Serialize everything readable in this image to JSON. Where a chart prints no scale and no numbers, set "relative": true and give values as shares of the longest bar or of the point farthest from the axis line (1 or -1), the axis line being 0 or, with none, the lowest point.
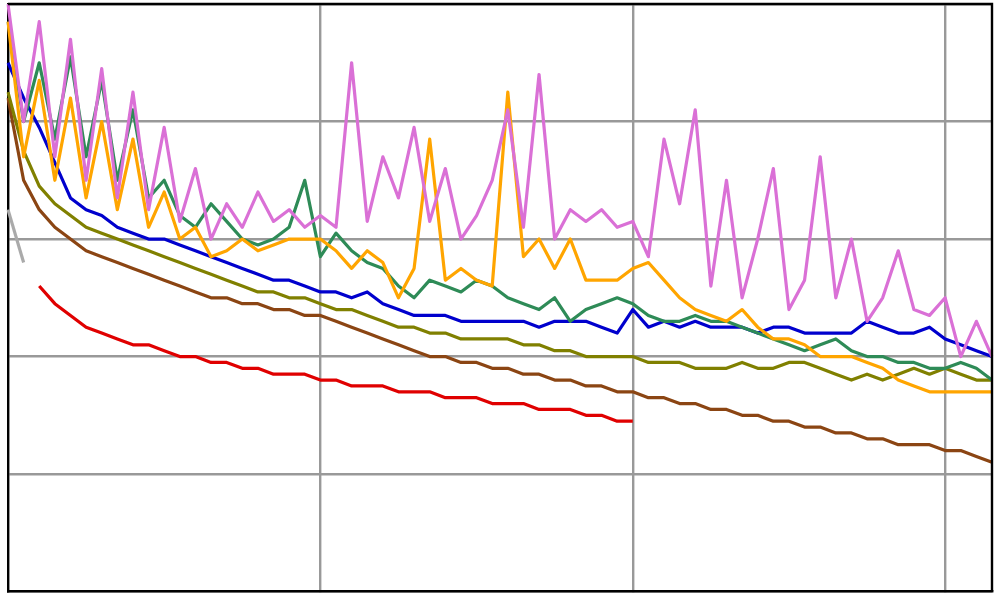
{
  "chart_data": {
    "type": "line",
    "relative": true,
    "grid": true,
    "line_style": "solid",
    "categories": [
      null,
      null,
      null,
      null,
      null,
      null,
      null,
      null,
      null,
      null,
      null,
      null,
      null,
      null,
      null,
      null,
      null,
      null,
      null,
      null,
      null,
      null,
      null,
      null,
      null,
      null,
      null,
      null,
      null,
      null,
      null,
      null,
      null,
      null,
      null,
      null,
      null,
      null,
      null,
      null,
      null,
      null,
      null,
      null,
      null,
      null,
      null,
      null,
      null,
      null,
      null,
      null,
      null,
      null,
      null,
      null,
      null,
      null,
      null,
      null,
      null,
      null,
      null,
      null
    ],
    "series": [
      {
        "color": "#da70d6",
        "values": [
          1.0,
          0.8,
          0.97,
          0.74,
          0.94,
          0.7,
          0.89,
          0.67,
          0.85,
          0.65,
          0.79,
          0.63,
          0.72,
          0.6,
          0.66,
          0.62,
          0.68,
          0.63,
          0.65,
          0.62,
          0.64,
          0.62,
          0.9,
          0.63,
          0.74,
          0.67,
          0.79,
          0.63,
          0.72,
          0.6,
          0.64,
          0.7,
          0.82,
          0.62,
          0.88,
          0.6,
          0.65,
          0.63,
          0.65,
          0.62,
          0.63,
          0.57,
          0.77,
          0.66,
          0.82,
          0.52,
          0.7,
          0.5,
          0.6,
          0.72,
          0.48,
          0.53,
          0.74,
          0.5,
          0.6,
          0.46,
          0.5,
          0.58,
          0.48,
          0.47,
          0.5,
          0.4,
          0.46,
          0.4
        ]
      },
      {
        "color": "#ffa500",
        "values": [
          0.97,
          0.74,
          0.87,
          0.7,
          0.84,
          0.67,
          0.8,
          0.65,
          0.77,
          0.62,
          0.68,
          0.6,
          0.62,
          0.57,
          0.58,
          0.6,
          0.58,
          0.59,
          0.6,
          0.6,
          0.6,
          0.58,
          0.55,
          0.58,
          0.56,
          0.5,
          0.55,
          0.77,
          0.53,
          0.55,
          0.53,
          0.52,
          0.85,
          0.57,
          0.6,
          0.55,
          0.6,
          0.53,
          0.53,
          0.53,
          0.55,
          0.56,
          0.53,
          0.5,
          0.48,
          0.47,
          0.46,
          0.48,
          0.45,
          0.43,
          0.43,
          0.42,
          0.4,
          0.4,
          0.4,
          0.39,
          0.38,
          0.36,
          0.35,
          0.34,
          0.34,
          0.34,
          0.34,
          0.34
        ]
      },
      {
        "color": "#2e8b57",
        "values": [
          0.97,
          0.8,
          0.9,
          0.77,
          0.91,
          0.74,
          0.87,
          0.7,
          0.82,
          0.67,
          0.7,
          0.64,
          0.62,
          0.66,
          0.63,
          0.6,
          0.59,
          0.6,
          0.62,
          0.7,
          0.57,
          0.61,
          0.58,
          0.56,
          0.55,
          0.52,
          0.5,
          0.53,
          0.52,
          0.51,
          0.53,
          0.52,
          0.5,
          0.49,
          0.48,
          0.5,
          0.46,
          0.48,
          0.49,
          0.5,
          0.49,
          0.47,
          0.46,
          0.46,
          0.47,
          0.46,
          0.46,
          0.45,
          0.44,
          0.43,
          0.42,
          0.41,
          0.42,
          0.43,
          0.41,
          0.4,
          0.4,
          0.39,
          0.39,
          0.38,
          0.38,
          0.39,
          0.38,
          0.36
        ]
      },
      {
        "color": "#0000cd",
        "values": [
          0.9,
          0.84,
          0.79,
          0.73,
          0.67,
          0.65,
          0.64,
          0.62,
          0.61,
          0.6,
          0.6,
          0.59,
          0.58,
          0.57,
          0.56,
          0.55,
          0.54,
          0.53,
          0.53,
          0.52,
          0.51,
          0.51,
          0.5,
          0.51,
          0.49,
          0.48,
          0.47,
          0.47,
          0.47,
          0.46,
          0.46,
          0.46,
          0.46,
          0.46,
          0.45,
          0.46,
          0.46,
          0.46,
          0.45,
          0.44,
          0.48,
          0.45,
          0.46,
          0.45,
          0.46,
          0.45,
          0.45,
          0.45,
          0.44,
          0.45,
          0.45,
          0.44,
          0.44,
          0.44,
          0.44,
          0.46,
          0.45,
          0.44,
          0.44,
          0.45,
          0.43,
          0.42,
          0.41,
          0.4
        ]
      },
      {
        "color": "#808000",
        "values": [
          0.85,
          0.75,
          0.69,
          0.66,
          0.64,
          0.62,
          0.61,
          0.6,
          0.59,
          0.58,
          0.57,
          0.56,
          0.55,
          0.54,
          0.53,
          0.52,
          0.51,
          0.51,
          0.5,
          0.5,
          0.49,
          0.48,
          0.48,
          0.47,
          0.46,
          0.45,
          0.45,
          0.44,
          0.44,
          0.43,
          0.43,
          0.43,
          0.43,
          0.42,
          0.42,
          0.41,
          0.41,
          0.4,
          0.4,
          0.4,
          0.4,
          0.39,
          0.39,
          0.39,
          0.38,
          0.38,
          0.38,
          0.39,
          0.38,
          0.38,
          0.39,
          0.39,
          0.38,
          0.37,
          0.36,
          0.37,
          0.36,
          0.37,
          0.38,
          0.37,
          0.38,
          0.37,
          0.36,
          0.36
        ]
      },
      {
        "color": "#8b4513",
        "values": [
          0.84,
          0.7,
          0.65,
          0.62,
          0.6,
          0.58,
          0.57,
          0.56,
          0.55,
          0.54,
          0.53,
          0.52,
          0.51,
          0.5,
          0.5,
          0.49,
          0.49,
          0.48,
          0.48,
          0.47,
          0.47,
          0.46,
          0.45,
          0.44,
          0.43,
          0.42,
          0.41,
          0.4,
          0.4,
          0.39,
          0.39,
          0.38,
          0.38,
          0.37,
          0.37,
          0.36,
          0.36,
          0.35,
          0.35,
          0.34,
          0.34,
          0.33,
          0.33,
          0.32,
          0.32,
          0.31,
          0.31,
          0.3,
          0.3,
          0.29,
          0.29,
          0.28,
          0.28,
          0.27,
          0.27,
          0.26,
          0.26,
          0.25,
          0.25,
          0.25,
          0.24,
          0.24,
          0.23,
          0.22
        ]
      },
      {
        "color": "#e00000",
        "values": [
          null,
          null,
          0.52,
          0.49,
          0.47,
          0.45,
          0.44,
          0.43,
          0.42,
          0.42,
          0.41,
          0.4,
          0.4,
          0.39,
          0.39,
          0.38,
          0.38,
          0.37,
          0.37,
          0.37,
          0.36,
          0.36,
          0.35,
          0.35,
          0.35,
          0.34,
          0.34,
          0.34,
          0.33,
          0.33,
          0.33,
          0.32,
          0.32,
          0.32,
          0.31,
          0.31,
          0.31,
          0.3,
          0.3,
          0.29,
          0.29,
          null,
          null,
          null,
          null,
          null,
          null,
          null,
          null,
          null,
          null,
          null,
          null,
          null,
          null,
          null,
          null,
          null,
          null,
          null,
          null,
          null,
          null,
          null
        ]
      },
      {
        "color": "#aaaaaa",
        "values": [
          0.65,
          0.56,
          null,
          null,
          null,
          null,
          null,
          null,
          null,
          null,
          null,
          null,
          null,
          null,
          null,
          null,
          null,
          null,
          null,
          null,
          null,
          null,
          null,
          null,
          null,
          null,
          null,
          null,
          null,
          null,
          null,
          null,
          null,
          null,
          null,
          null,
          null,
          null,
          null,
          null,
          null,
          null,
          null,
          null,
          null,
          null,
          null,
          null,
          null,
          null,
          null,
          null,
          null,
          null,
          null,
          null,
          null,
          null,
          null,
          null,
          null,
          null,
          null,
          null
        ]
      }
    ]
  }
}
